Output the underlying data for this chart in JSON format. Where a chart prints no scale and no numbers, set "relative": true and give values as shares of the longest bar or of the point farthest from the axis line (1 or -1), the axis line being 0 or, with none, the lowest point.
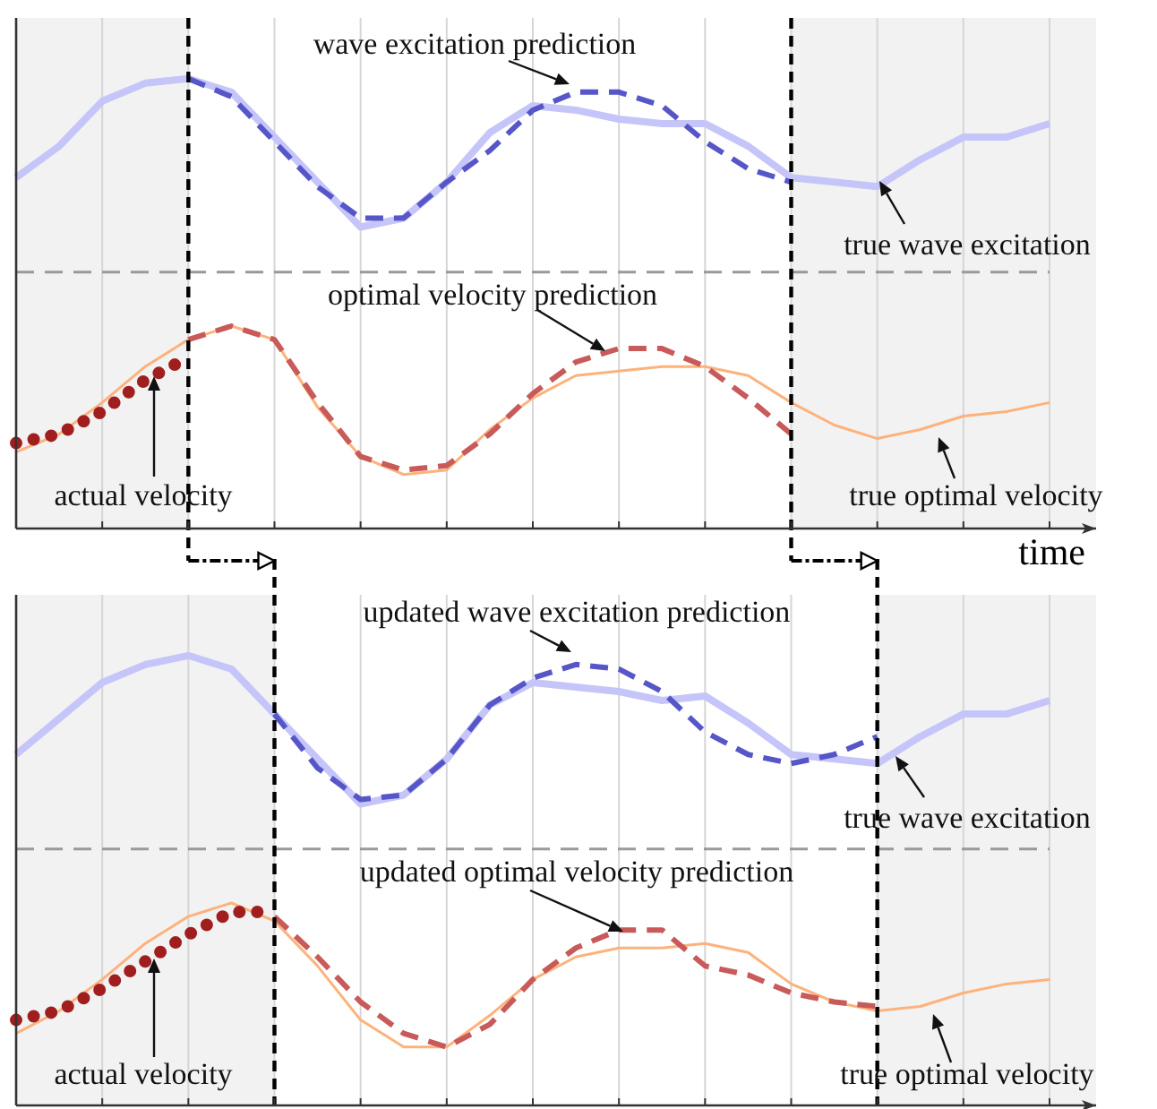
{
  "chart_data": [
    {
      "type": "line",
      "relative": true,
      "xlabel": "time",
      "categories": [
        null,
        null,
        null,
        null,
        null,
        null,
        null,
        null,
        null,
        null,
        null,
        null,
        null,
        null,
        null,
        null,
        null,
        null,
        null,
        null,
        null,
        null,
        null,
        null,
        null
      ],
      "grid": "x",
      "series": [
        {
          "color": "#c5c5fa",
          "line_style": "solid",
          "values": [
            0.78,
            0.85,
            0.95,
            0.99,
            1,
            0.97,
            0.87,
            0.77,
            0.67,
            0.69,
            0.77,
            0.88,
            0.94,
            0.93,
            0.91,
            0.9,
            0.9,
            0.85,
            0.78,
            0.77,
            0.76,
            0.82,
            0.87,
            0.87,
            0.9
          ]
        },
        {
          "color": "#5656c8",
          "line_style": "dashed",
          "values": [
            null,
            null,
            null,
            null,
            1,
            0.96,
            0.86,
            0.76,
            0.69,
            0.69,
            0.77,
            0.84,
            0.93,
            0.97,
            0.97,
            0.94,
            0.86,
            0.8,
            0.77,
            null,
            null,
            null,
            null,
            null,
            null
          ]
        },
        {
          "color": "#fdb27c",
          "line_style": "solid",
          "values": [
            0.17,
            0.21,
            0.28,
            0.36,
            0.42,
            0.45,
            0.42,
            0.27,
            0.16,
            0.12,
            0.13,
            0.22,
            0.29,
            0.34,
            0.35,
            0.36,
            0.36,
            0.34,
            0.28,
            0.23,
            0.2,
            0.22,
            0.25,
            0.26,
            0.28
          ]
        },
        {
          "color": "#c85a5a",
          "line_style": "dashed",
          "values": [
            null,
            null,
            null,
            null,
            0.42,
            0.45,
            0.42,
            0.28,
            0.16,
            0.13,
            0.14,
            0.21,
            0.3,
            0.37,
            0.4,
            0.4,
            0.36,
            0.29,
            0.21,
            null,
            null,
            null,
            null,
            null,
            null
          ]
        },
        {
          "color": "#a01e1e",
          "line_style": "dotted",
          "values": [
            0.19,
            0.21,
            0.26,
            0.33,
            0.38,
            null,
            null,
            null,
            null,
            null,
            null,
            null,
            null,
            null,
            null,
            null,
            null,
            null,
            null,
            null,
            null,
            null,
            null,
            null,
            null
          ]
        }
      ],
      "ref_lines": [
        {
          "axis": "y",
          "value": 0.57,
          "color": "#999999",
          "line_style": "dashed"
        }
      ],
      "annotations": [
        "wave excitation prediction",
        "true wave excitation",
        "optimal velocity prediction",
        "actual velocity",
        "true optimal velocity"
      ]
    },
    {
      "type": "line",
      "relative": true,
      "categories": [
        null,
        null,
        null,
        null,
        null,
        null,
        null,
        null,
        null,
        null,
        null,
        null,
        null,
        null,
        null,
        null,
        null,
        null,
        null,
        null,
        null,
        null,
        null,
        null,
        null
      ],
      "grid": "x",
      "series": [
        {
          "color": "#c5c5fa",
          "line_style": "solid",
          "values": [
            0.78,
            0.86,
            0.94,
            0.98,
            1,
            0.97,
            0.87,
            0.77,
            0.67,
            0.69,
            0.77,
            0.89,
            0.94,
            0.93,
            0.92,
            0.9,
            0.91,
            0.85,
            0.78,
            0.77,
            0.76,
            0.82,
            0.87,
            0.87,
            0.9
          ]
        },
        {
          "color": "#5656c8",
          "line_style": "dashed",
          "values": [
            null,
            null,
            null,
            null,
            null,
            null,
            0.87,
            0.75,
            0.68,
            0.69,
            0.77,
            0.89,
            0.95,
            0.98,
            0.97,
            0.92,
            0.83,
            0.78,
            0.76,
            0.78,
            0.82,
            null,
            null,
            null,
            null
          ]
        },
        {
          "color": "#fdb27c",
          "line_style": "solid",
          "values": [
            0.16,
            0.21,
            0.28,
            0.36,
            0.42,
            0.45,
            0.41,
            0.31,
            0.19,
            0.13,
            0.13,
            0.2,
            0.28,
            0.33,
            0.35,
            0.35,
            0.36,
            0.34,
            0.27,
            0.23,
            0.21,
            0.22,
            0.25,
            0.27,
            0.28
          ]
        },
        {
          "color": "#c85a5a",
          "line_style": "dashed",
          "values": [
            null,
            null,
            null,
            null,
            null,
            null,
            0.42,
            0.33,
            0.23,
            0.16,
            0.13,
            0.18,
            0.28,
            0.35,
            0.39,
            0.39,
            0.31,
            0.29,
            0.25,
            0.23,
            0.22,
            null,
            null,
            null,
            null
          ]
        },
        {
          "color": "#a01e1e",
          "line_style": "dotted",
          "values": [
            0.19,
            0.21,
            0.26,
            0.32,
            0.38,
            0.43,
            0.43,
            null,
            null,
            null,
            null,
            null,
            null,
            null,
            null,
            null,
            null,
            null,
            null,
            null,
            null,
            null,
            null,
            null,
            null
          ]
        }
      ],
      "ref_lines": [
        {
          "axis": "y",
          "value": 0.57,
          "color": "#999999",
          "line_style": "dashed"
        }
      ],
      "annotations": [
        "updated wave excitation prediction",
        "true wave excitation",
        "updated optimal velocity prediction",
        "actual velocity",
        "true optimal velocity"
      ]
    }
  ]
}
